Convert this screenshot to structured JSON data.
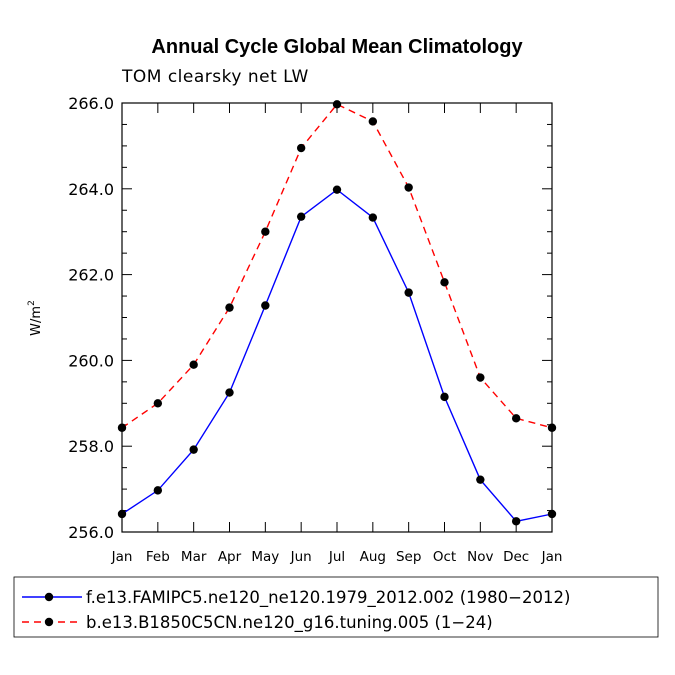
{
  "chart_data": {
    "type": "line",
    "title": "Annual Cycle Global Mean Climatology",
    "subtitle": "TOM clearsky net LW",
    "ylabel": "W/m",
    "ylabel_superscript": "2",
    "ylim": [
      256.0,
      266.0
    ],
    "yticks": [
      "256.0",
      "258.0",
      "260.0",
      "262.0",
      "264.0",
      "266.0"
    ],
    "categories": [
      "Jan",
      "Feb",
      "Mar",
      "Apr",
      "May",
      "Jun",
      "Jul",
      "Aug",
      "Sep",
      "Oct",
      "Nov",
      "Dec",
      "Jan"
    ],
    "series": [
      {
        "name": "f.e13.FAMIPC5.ne120_ne120.1979_2012.002 (1980−2012)",
        "color": "#0000ff",
        "style": "solid",
        "values": [
          256.42,
          256.97,
          257.92,
          259.25,
          261.28,
          263.35,
          263.98,
          263.33,
          261.58,
          259.15,
          257.22,
          256.25,
          256.42
        ]
      },
      {
        "name": "b.e13.B1850C5CN.ne120_g16.tuning.005 (1−24)",
        "color": "#ff0000",
        "style": "dashed",
        "values": [
          258.43,
          259.0,
          259.9,
          261.23,
          263.0,
          264.95,
          265.97,
          265.57,
          264.03,
          261.82,
          259.6,
          258.65,
          258.43
        ]
      }
    ],
    "legend": {
      "position": "bottom"
    }
  }
}
